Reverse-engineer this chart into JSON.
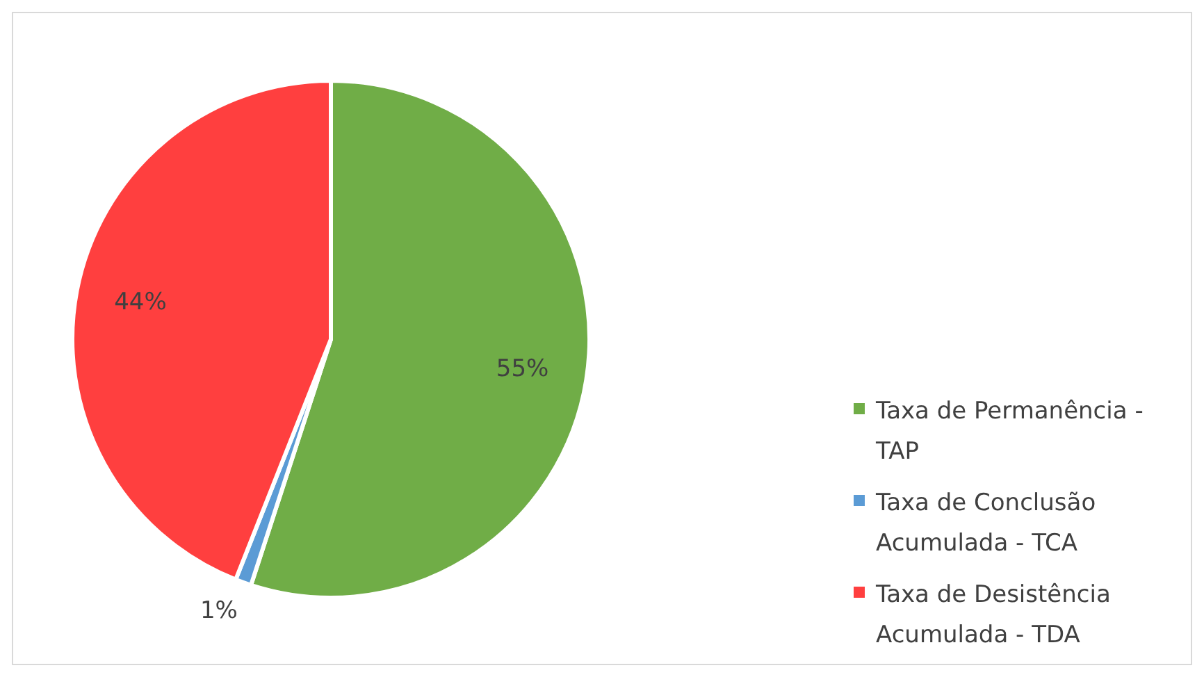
{
  "chart_data": {
    "type": "pie",
    "categories": [
      "Taxa de Permanência - TAP",
      "Taxa de Conclusão Acumulada - TCA",
      "Taxa de Desistência Acumulada - TDA"
    ],
    "values": [
      55,
      1,
      44
    ],
    "colors": [
      "#70ad47",
      "#5b9bd5",
      "#ff3f3f"
    ],
    "value_labels": [
      "55%",
      "1%",
      "44%"
    ],
    "legend": "right"
  }
}
